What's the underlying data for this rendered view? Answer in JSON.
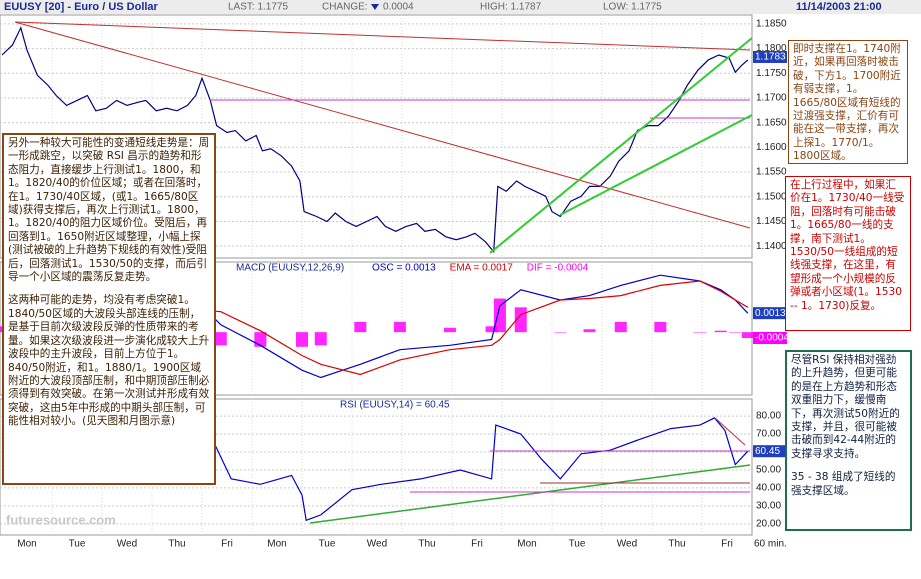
{
  "header": {
    "title": "EUUSY [20] - Euro / US Dollar",
    "last": "LAST: 1.1775",
    "change_label": "CHANGE:",
    "change": "0.0004",
    "high": "HIGH: 1.1787",
    "low": "LOW: 1.1775",
    "datetime": "11/14/2003 21:00"
  },
  "chart_data": [
    {
      "type": "line",
      "name": "price",
      "xlim": [
        0,
        360
      ],
      "ylim": [
        1.1376,
        1.1868
      ],
      "yticks": [
        {
          "value": 1.185,
          "label": "1.1850"
        },
        {
          "value": 1.18,
          "label": "1.1800"
        },
        {
          "value": 1.175,
          "label": "1.1750"
        },
        {
          "value": 1.17,
          "label": "1.1700"
        },
        {
          "value": 1.165,
          "label": "1.1650"
        },
        {
          "value": 1.16,
          "label": "1.1600"
        },
        {
          "value": 1.155,
          "label": "1.1550"
        },
        {
          "value": 1.15,
          "label": "1.1500"
        },
        {
          "value": 1.145,
          "label": "1.1450"
        },
        {
          "value": 1.14,
          "label": "1.1400"
        }
      ],
      "markers": [
        {
          "value": 1.1783,
          "color": "#1f3fbf"
        }
      ],
      "x": [
        0,
        5,
        9,
        12,
        17,
        22,
        26,
        31,
        36,
        41,
        45,
        50,
        55,
        60,
        65,
        69,
        74,
        79,
        84,
        89,
        93,
        96,
        100,
        103,
        108,
        112,
        117,
        122,
        125,
        129,
        134,
        139,
        143,
        145,
        151,
        156,
        160,
        165,
        170,
        175,
        180,
        184,
        189,
        194,
        199,
        203,
        208,
        213,
        218,
        223,
        227,
        232,
        236,
        238,
        242,
        247,
        251,
        256,
        261,
        264,
        268,
        273,
        278,
        282,
        287,
        292,
        296,
        301,
        305,
        310,
        315,
        320,
        325,
        329,
        334,
        339,
        344,
        349,
        352,
        355,
        358
      ],
      "series": [
        {
          "color": "#000080",
          "values": [
            1.1787,
            1.1807,
            1.1842,
            1.1797,
            1.1746,
            1.1726,
            1.1705,
            1.1685,
            1.1695,
            1.1705,
            1.1674,
            1.1679,
            1.1695,
            1.1685,
            1.1691,
            1.1695,
            1.1674,
            1.1679,
            1.1674,
            1.1685,
            1.1705,
            1.174,
            1.1695,
            1.1644,
            1.163,
            1.1634,
            1.1613,
            1.1624,
            1.1593,
            1.1597,
            1.1583,
            1.1562,
            1.1532,
            1.147,
            1.146,
            1.145,
            1.1467,
            1.145,
            1.144,
            1.145,
            1.146,
            1.144,
            1.143,
            1.144,
            1.1446,
            1.143,
            1.1434,
            1.1419,
            1.1413,
            1.1419,
            1.1426,
            1.1409,
            1.1389,
            1.1521,
            1.1511,
            1.1532,
            1.1521,
            1.1511,
            1.1501,
            1.147,
            1.146,
            1.1491,
            1.1501,
            1.1521,
            1.1521,
            1.1542,
            1.1572,
            1.1593,
            1.1634,
            1.1644,
            1.1644,
            1.1664,
            1.1695,
            1.1726,
            1.1756,
            1.1777,
            1.1787,
            1.1781,
            1.1752,
            1.1766,
            1.1777
          ]
        }
      ],
      "grid": true
    },
    {
      "type": "macd",
      "title": "MACD (EUUSY,12,26,9)",
      "xlim": [
        0,
        360
      ],
      "ylim": [
        -0.0043,
        0.0048
      ],
      "markers": [
        {
          "value": 0.0013,
          "color": "#1f3fbf"
        },
        {
          "value": -0.0004,
          "color": "#ff00ff"
        }
      ],
      "x": [
        0,
        10,
        24,
        48,
        72,
        96,
        105,
        124,
        144,
        153,
        172,
        191,
        215,
        235,
        239,
        249,
        268,
        282,
        297,
        316,
        335,
        345,
        352,
        358
      ],
      "series": [
        {
          "name": "OSC = 0.0013",
          "color": "#0000cc",
          "style": "line",
          "values": [
            0.0022,
            0.0029,
            0.0008,
            0.0005,
            0.0008,
            0.0018,
            0.0005,
            -0.0009,
            -0.0026,
            -0.0031,
            -0.0022,
            -0.0012,
            -0.0009,
            -0.0005,
            0.0018,
            0.0029,
            0.0022,
            0.0025,
            0.0032,
            0.0039,
            0.0035,
            0.0029,
            0.0022,
            0.0013
          ]
        },
        {
          "name": "EMA = 0.0017",
          "color": "#dd0000",
          "style": "line",
          "values": [
            0.0018,
            0.0024,
            0.0018,
            0.0008,
            0.0007,
            0.0015,
            0.0014,
            0.0001,
            -0.0016,
            -0.0022,
            -0.0029,
            -0.0019,
            -0.0012,
            -0.0009,
            -0.0005,
            0.0012,
            0.0022,
            0.0023,
            0.0025,
            0.0032,
            0.0035,
            0.0028,
            0.0022,
            0.0017
          ]
        },
        {
          "name": "DIF = -0.0004",
          "color": "#ff00ff",
          "style": "bar",
          "values": [
            0.0004,
            0.0005,
            -0.001,
            -0.0003,
            0.0001,
            0.0003,
            -0.0009,
            -0.001,
            -0.001,
            -0.0009,
            0.0007,
            0.0007,
            0.0003,
            0.0004,
            0.0023,
            0.0017,
            0,
            0.0002,
            0.0007,
            0.0007,
            0,
            0.0001,
            0,
            -0.0004
          ]
        }
      ]
    },
    {
      "type": "line",
      "name": "rsi",
      "title": "RSI (EUUSY,14) = 60.45",
      "xlim": [
        0,
        360
      ],
      "ylim": [
        13.8,
        89.5
      ],
      "yticks": [
        {
          "value": 80,
          "label": "80.00"
        },
        {
          "value": 70,
          "label": "70.00"
        },
        {
          "value": 60,
          "label": "60.00"
        },
        {
          "value": 50,
          "label": "50.00"
        },
        {
          "value": 40,
          "label": "40.00"
        },
        {
          "value": 30,
          "label": "30.00"
        },
        {
          "value": 20,
          "label": "20.00"
        }
      ],
      "markers": [
        {
          "value": 60.45,
          "color": "#1f3fbf"
        }
      ],
      "x": [
        0,
        10,
        24,
        38,
        57,
        77,
        96,
        101,
        110,
        124,
        139,
        144,
        146,
        153,
        168,
        182,
        201,
        220,
        235,
        237,
        249,
        259,
        268,
        278,
        292,
        306,
        321,
        335,
        342,
        347,
        352,
        358
      ],
      "series": [
        {
          "color": "#0000cc",
          "values": [
            67,
            73,
            59,
            50,
            45,
            50,
            56,
            67,
            45,
            42,
            47,
            36,
            22,
            25,
            39,
            42,
            45,
            50,
            45,
            75,
            70,
            56,
            45,
            59,
            61,
            67,
            73,
            75,
            79,
            72,
            53,
            60.45
          ]
        }
      ],
      "xticks": [
        {
          "value": 12,
          "label": "Mon"
        },
        {
          "value": 36,
          "label": "Tue"
        },
        {
          "value": 60,
          "label": "Wed"
        },
        {
          "value": 84,
          "label": "Thu"
        },
        {
          "value": 108,
          "label": "Fri"
        },
        {
          "value": 132,
          "label": "Mon"
        },
        {
          "value": 156,
          "label": "Tue"
        },
        {
          "value": 180,
          "label": "Wed"
        },
        {
          "value": 204,
          "label": "Thu"
        },
        {
          "value": 228,
          "label": "Fri"
        },
        {
          "value": 252,
          "label": "Mon"
        },
        {
          "value": 276,
          "label": "Tue"
        },
        {
          "value": 300,
          "label": "Wed"
        },
        {
          "value": 324,
          "label": "Thu"
        },
        {
          "value": 348,
          "label": "Fri"
        }
      ],
      "interval": "60 min.",
      "grid": true
    }
  ],
  "watermark": "futuresource.com",
  "annotations": [
    {
      "paragraphs": [
        "另外一种较大可能性的变通短线走势是：周一形成跳空，以突破 RSI 昌示的趋势和形态阻力，直接缓步上行测试1。1800，和1。1820/40的价位区域；或者在回落时，在1。1730/40区域，(或1。1665/80区域)获得支撑后，再次上行测试1。1800，1。1820/40的阻力区域价位。受阻后，再回落到1。1650附近区域整理，小幅上探(测试被破的上升趋势下规线的有效性)受阻后，回落测试1。1530/50的支撑，而后引导一个小区域的震荡反复走势。",
        "这两种可能的走势，均没有考虑突破1。1840/50区域的大波段头部连线的压制，是基于目前次级波段反弹的性质带来的考量。如果这次级波段进一步演化成较大上升波段中的主升波段，目前上方位于1。840/50附近，和1。1880/1。1900区域附近的大波段顶部压制，和中期顶部压制必须得到有效突破。在第一次测试并形成有效突破，这由5年中形成的中期头部压制，可能性相对较小。(见天图和月图示意)"
      ]
    },
    {
      "paragraphs": [
        "即时支撑在1。1740附近，如果再回落时被击破，下方1。1700附近有弱支撑，1。1665/80区域有短线的过渡强支撑，汇价有可能在这一带支撑，再次上探1。1770/1。1800区域。"
      ]
    },
    {
      "paragraphs": [
        "在上行过程中，如果汇价在1。1730/40一线受阻，回落时有可能击破1。1665/80一线的支撑，南下测试1。1530/50一线组成的短线强支撑，在这里，有望形成一个小规模的反弹或者小区域(1。1530 -- 1。1730)反复。"
      ]
    },
    {
      "paragraphs": [
        "尽管RSI 保持相对强劲的上升趋势，但更可能的是在上方趋势和形态双重阻力下，缓慢南下，再次测试50附近的支撑，并且，很可能被击破而到42-44附近的支撑寻求支持。",
        "35 - 38 组成了短线的强支撑区域。"
      ]
    }
  ]
}
